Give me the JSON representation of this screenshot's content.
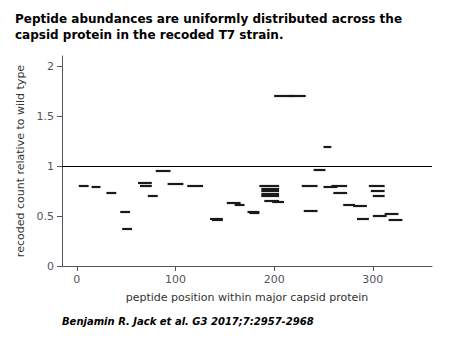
{
  "chart_data": {
    "type": "segment",
    "title": "Peptide abundances are uniformly distributed across the capsid protein in the recoded T7 strain.",
    "xlabel": "peptide position within major capsid protein",
    "ylabel": "recoded count relative to wild type",
    "annotation": "Benjamin R. Jack et al. G3 2017;7:2957-2968",
    "xlim": [
      -15,
      360
    ],
    "ylim": [
      0.0,
      2.1
    ],
    "xticks": [
      0,
      100,
      200,
      300
    ],
    "yticks": [
      0.0,
      0.5,
      1.0,
      1.5,
      2.0
    ],
    "reference_line": {
      "value": 1.0,
      "color": "#000000"
    },
    "color": "#1a1a1a",
    "grid": false,
    "segments": [
      [
        2,
        12,
        0.8
      ],
      [
        15,
        24,
        0.79
      ],
      [
        30,
        40,
        0.73
      ],
      [
        44,
        54,
        0.54
      ],
      [
        46,
        56,
        0.37
      ],
      [
        62,
        76,
        0.83
      ],
      [
        64,
        76,
        0.8
      ],
      [
        72,
        82,
        0.7
      ],
      [
        80,
        95,
        0.95
      ],
      [
        92,
        108,
        0.82
      ],
      [
        112,
        128,
        0.8
      ],
      [
        135,
        148,
        0.47
      ],
      [
        137,
        148,
        0.46
      ],
      [
        152,
        166,
        0.63
      ],
      [
        160,
        170,
        0.61
      ],
      [
        173,
        185,
        0.54
      ],
      [
        175,
        185,
        0.53
      ],
      [
        185,
        205,
        0.8
      ],
      [
        187,
        205,
        0.77
      ],
      [
        187,
        205,
        0.75
      ],
      [
        187,
        205,
        0.72
      ],
      [
        187,
        205,
        0.7
      ],
      [
        190,
        205,
        0.65
      ],
      [
        198,
        210,
        0.64
      ],
      [
        200,
        220,
        1.7
      ],
      [
        215,
        232,
        1.7
      ],
      [
        228,
        244,
        0.8
      ],
      [
        230,
        244,
        0.55
      ],
      [
        240,
        252,
        0.96
      ],
      [
        250,
        258,
        1.19
      ],
      [
        250,
        264,
        0.79
      ],
      [
        258,
        274,
        0.8
      ],
      [
        260,
        274,
        0.73
      ],
      [
        270,
        282,
        0.61
      ],
      [
        280,
        294,
        0.6
      ],
      [
        284,
        296,
        0.47
      ],
      [
        296,
        312,
        0.8
      ],
      [
        298,
        312,
        0.75
      ],
      [
        300,
        312,
        0.7
      ],
      [
        300,
        314,
        0.5
      ],
      [
        312,
        326,
        0.52
      ],
      [
        316,
        330,
        0.46
      ]
    ]
  }
}
